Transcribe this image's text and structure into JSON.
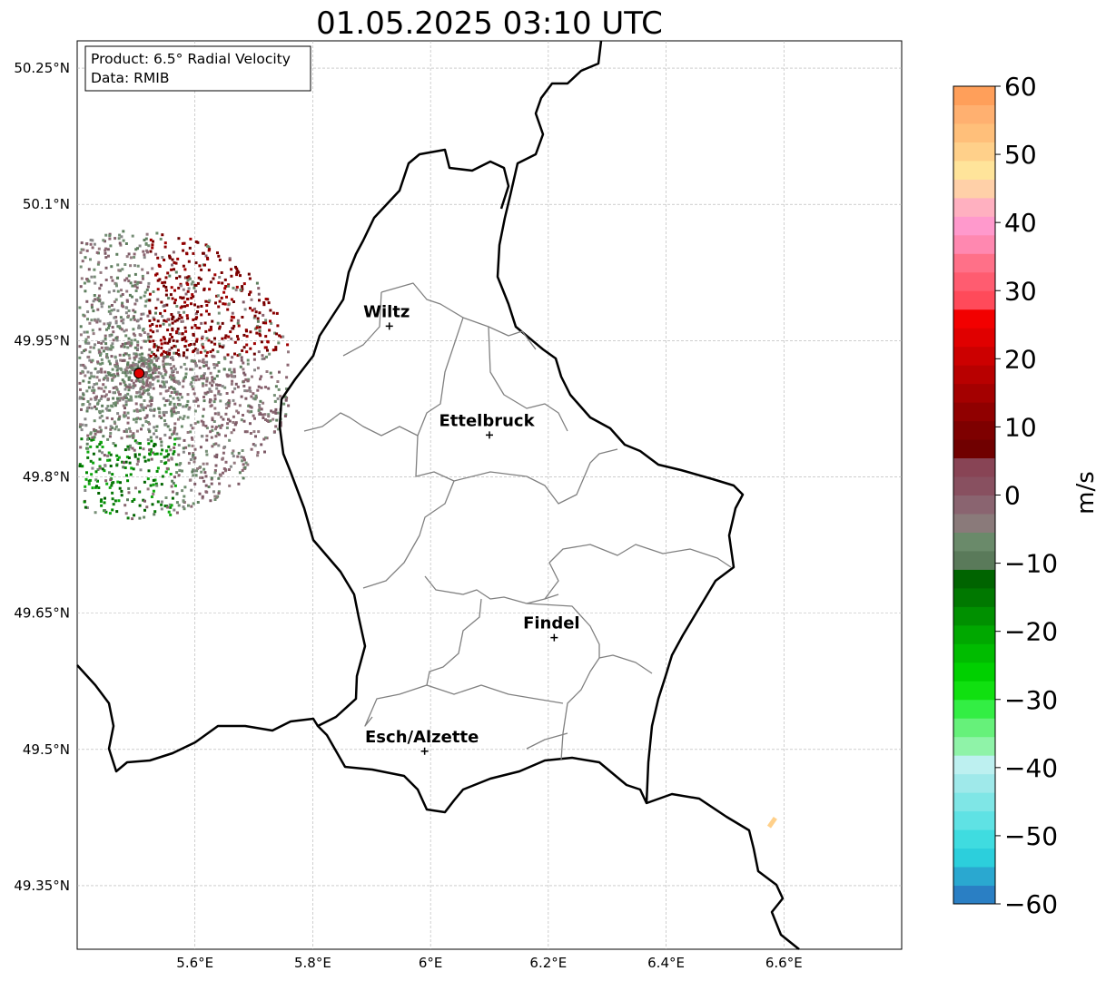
{
  "title": "01.05.2025 03:10 UTC",
  "info_box": {
    "product": "Product: 6.5° Radial Velocity",
    "data": "Data: RMIB"
  },
  "map": {
    "lon_range": [
      5.4,
      6.8
    ],
    "lat_range": [
      49.28,
      50.28
    ],
    "x_ticks": [
      "5.6°E",
      "5.8°E",
      "6°E",
      "6.2°E",
      "6.4°E",
      "6.6°E"
    ],
    "y_ticks": [
      "50.25°N",
      "50.1°N",
      "49.95°N",
      "49.8°N",
      "49.65°N",
      "49.5°N",
      "49.35°N"
    ],
    "grid": true,
    "cities": [
      {
        "name": "Wiltz",
        "lon": 5.93,
        "lat": 49.966
      },
      {
        "name": "Ettelbruck",
        "lon": 6.1,
        "lat": 49.846
      },
      {
        "name": "Findel",
        "lon": 6.21,
        "lat": 49.623
      },
      {
        "name": "Esch/Alzette",
        "lon": 5.99,
        "lat": 49.498
      }
    ],
    "radar_site": {
      "lon": 5.505,
      "lat": 49.914,
      "color": "#e00000"
    }
  },
  "colorbar": {
    "label": "m/s",
    "range": [
      -60,
      60
    ],
    "ticks": [
      "60",
      "50",
      "40",
      "30",
      "20",
      "10",
      "0",
      "−10",
      "−20",
      "−30",
      "−40",
      "−50",
      "−60"
    ],
    "colors": [
      "#2a7fc4",
      "#2aa8d0",
      "#2ccfdc",
      "#3fdce0",
      "#5fe2e4",
      "#7fe6e6",
      "#9fe9ea",
      "#bdf0f0",
      "#8ff3a8",
      "#66f17a",
      "#33ee44",
      "#10e010",
      "#00d000",
      "#00bc00",
      "#00a800",
      "#009000",
      "#007800",
      "#006400",
      "#5a7a5a",
      "#6a8a6a",
      "#8a7a7a",
      "#8a6470",
      "#885060",
      "#884455",
      "#700000",
      "#7e0000",
      "#900000",
      "#a40000",
      "#b80000",
      "#cc0000",
      "#e00000",
      "#f20000",
      "#ff4a5a",
      "#ff5c70",
      "#ff7088",
      "#ff88b0",
      "#ff99cc",
      "#ffb0c0",
      "#ffd0a8",
      "#ffe49a",
      "#ffd08a",
      "#ffbf7a",
      "#ffb070",
      "#ff9f5a"
    ]
  }
}
